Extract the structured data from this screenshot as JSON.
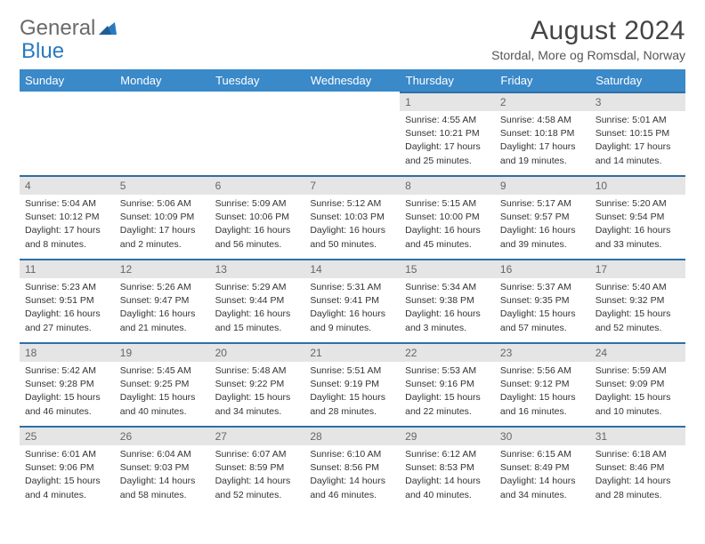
{
  "logo": {
    "general": "General",
    "blue": "Blue"
  },
  "title": "August 2024",
  "subtitle": "Stordal, More og Romsdal, Norway",
  "colors": {
    "header_bg": "#3a89c9",
    "daynum_bg": "#e5e5e5",
    "rule": "#2f6fa6",
    "logo_blue": "#2a7abf"
  },
  "dayNames": [
    "Sunday",
    "Monday",
    "Tuesday",
    "Wednesday",
    "Thursday",
    "Friday",
    "Saturday"
  ],
  "weeks": [
    [
      null,
      null,
      null,
      null,
      {
        "n": "1",
        "sr": "Sunrise: 4:55 AM",
        "ss": "Sunset: 10:21 PM",
        "dl1": "Daylight: 17 hours",
        "dl2": "and 25 minutes."
      },
      {
        "n": "2",
        "sr": "Sunrise: 4:58 AM",
        "ss": "Sunset: 10:18 PM",
        "dl1": "Daylight: 17 hours",
        "dl2": "and 19 minutes."
      },
      {
        "n": "3",
        "sr": "Sunrise: 5:01 AM",
        "ss": "Sunset: 10:15 PM",
        "dl1": "Daylight: 17 hours",
        "dl2": "and 14 minutes."
      }
    ],
    [
      {
        "n": "4",
        "sr": "Sunrise: 5:04 AM",
        "ss": "Sunset: 10:12 PM",
        "dl1": "Daylight: 17 hours",
        "dl2": "and 8 minutes."
      },
      {
        "n": "5",
        "sr": "Sunrise: 5:06 AM",
        "ss": "Sunset: 10:09 PM",
        "dl1": "Daylight: 17 hours",
        "dl2": "and 2 minutes."
      },
      {
        "n": "6",
        "sr": "Sunrise: 5:09 AM",
        "ss": "Sunset: 10:06 PM",
        "dl1": "Daylight: 16 hours",
        "dl2": "and 56 minutes."
      },
      {
        "n": "7",
        "sr": "Sunrise: 5:12 AM",
        "ss": "Sunset: 10:03 PM",
        "dl1": "Daylight: 16 hours",
        "dl2": "and 50 minutes."
      },
      {
        "n": "8",
        "sr": "Sunrise: 5:15 AM",
        "ss": "Sunset: 10:00 PM",
        "dl1": "Daylight: 16 hours",
        "dl2": "and 45 minutes."
      },
      {
        "n": "9",
        "sr": "Sunrise: 5:17 AM",
        "ss": "Sunset: 9:57 PM",
        "dl1": "Daylight: 16 hours",
        "dl2": "and 39 minutes."
      },
      {
        "n": "10",
        "sr": "Sunrise: 5:20 AM",
        "ss": "Sunset: 9:54 PM",
        "dl1": "Daylight: 16 hours",
        "dl2": "and 33 minutes."
      }
    ],
    [
      {
        "n": "11",
        "sr": "Sunrise: 5:23 AM",
        "ss": "Sunset: 9:51 PM",
        "dl1": "Daylight: 16 hours",
        "dl2": "and 27 minutes."
      },
      {
        "n": "12",
        "sr": "Sunrise: 5:26 AM",
        "ss": "Sunset: 9:47 PM",
        "dl1": "Daylight: 16 hours",
        "dl2": "and 21 minutes."
      },
      {
        "n": "13",
        "sr": "Sunrise: 5:29 AM",
        "ss": "Sunset: 9:44 PM",
        "dl1": "Daylight: 16 hours",
        "dl2": "and 15 minutes."
      },
      {
        "n": "14",
        "sr": "Sunrise: 5:31 AM",
        "ss": "Sunset: 9:41 PM",
        "dl1": "Daylight: 16 hours",
        "dl2": "and 9 minutes."
      },
      {
        "n": "15",
        "sr": "Sunrise: 5:34 AM",
        "ss": "Sunset: 9:38 PM",
        "dl1": "Daylight: 16 hours",
        "dl2": "and 3 minutes."
      },
      {
        "n": "16",
        "sr": "Sunrise: 5:37 AM",
        "ss": "Sunset: 9:35 PM",
        "dl1": "Daylight: 15 hours",
        "dl2": "and 57 minutes."
      },
      {
        "n": "17",
        "sr": "Sunrise: 5:40 AM",
        "ss": "Sunset: 9:32 PM",
        "dl1": "Daylight: 15 hours",
        "dl2": "and 52 minutes."
      }
    ],
    [
      {
        "n": "18",
        "sr": "Sunrise: 5:42 AM",
        "ss": "Sunset: 9:28 PM",
        "dl1": "Daylight: 15 hours",
        "dl2": "and 46 minutes."
      },
      {
        "n": "19",
        "sr": "Sunrise: 5:45 AM",
        "ss": "Sunset: 9:25 PM",
        "dl1": "Daylight: 15 hours",
        "dl2": "and 40 minutes."
      },
      {
        "n": "20",
        "sr": "Sunrise: 5:48 AM",
        "ss": "Sunset: 9:22 PM",
        "dl1": "Daylight: 15 hours",
        "dl2": "and 34 minutes."
      },
      {
        "n": "21",
        "sr": "Sunrise: 5:51 AM",
        "ss": "Sunset: 9:19 PM",
        "dl1": "Daylight: 15 hours",
        "dl2": "and 28 minutes."
      },
      {
        "n": "22",
        "sr": "Sunrise: 5:53 AM",
        "ss": "Sunset: 9:16 PM",
        "dl1": "Daylight: 15 hours",
        "dl2": "and 22 minutes."
      },
      {
        "n": "23",
        "sr": "Sunrise: 5:56 AM",
        "ss": "Sunset: 9:12 PM",
        "dl1": "Daylight: 15 hours",
        "dl2": "and 16 minutes."
      },
      {
        "n": "24",
        "sr": "Sunrise: 5:59 AM",
        "ss": "Sunset: 9:09 PM",
        "dl1": "Daylight: 15 hours",
        "dl2": "and 10 minutes."
      }
    ],
    [
      {
        "n": "25",
        "sr": "Sunrise: 6:01 AM",
        "ss": "Sunset: 9:06 PM",
        "dl1": "Daylight: 15 hours",
        "dl2": "and 4 minutes."
      },
      {
        "n": "26",
        "sr": "Sunrise: 6:04 AM",
        "ss": "Sunset: 9:03 PM",
        "dl1": "Daylight: 14 hours",
        "dl2": "and 58 minutes."
      },
      {
        "n": "27",
        "sr": "Sunrise: 6:07 AM",
        "ss": "Sunset: 8:59 PM",
        "dl1": "Daylight: 14 hours",
        "dl2": "and 52 minutes."
      },
      {
        "n": "28",
        "sr": "Sunrise: 6:10 AM",
        "ss": "Sunset: 8:56 PM",
        "dl1": "Daylight: 14 hours",
        "dl2": "and 46 minutes."
      },
      {
        "n": "29",
        "sr": "Sunrise: 6:12 AM",
        "ss": "Sunset: 8:53 PM",
        "dl1": "Daylight: 14 hours",
        "dl2": "and 40 minutes."
      },
      {
        "n": "30",
        "sr": "Sunrise: 6:15 AM",
        "ss": "Sunset: 8:49 PM",
        "dl1": "Daylight: 14 hours",
        "dl2": "and 34 minutes."
      },
      {
        "n": "31",
        "sr": "Sunrise: 6:18 AM",
        "ss": "Sunset: 8:46 PM",
        "dl1": "Daylight: 14 hours",
        "dl2": "and 28 minutes."
      }
    ]
  ]
}
